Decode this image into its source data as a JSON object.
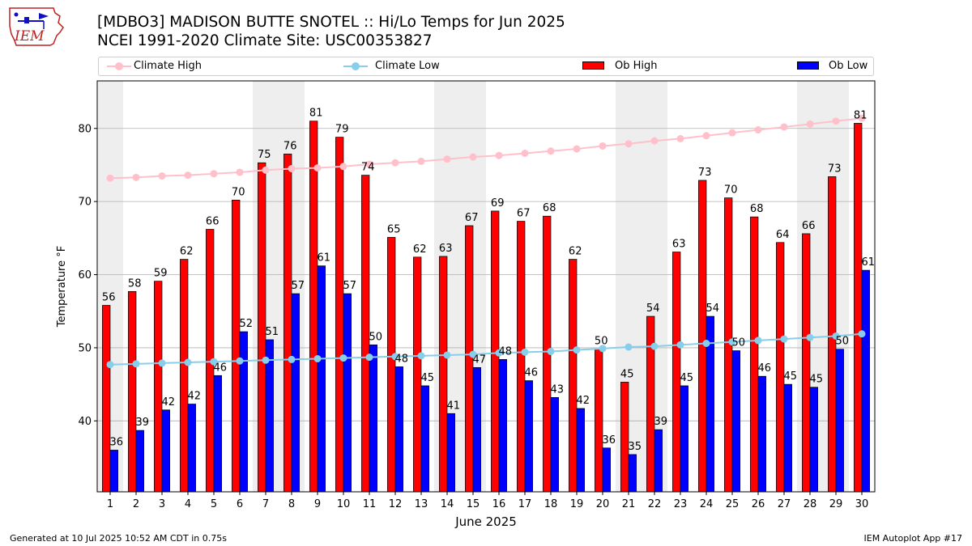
{
  "header": {
    "title": "[MDBO3] MADISON BUTTE SNOTEL :: Hi/Lo Temps for Jun 2025",
    "subtitle": "NCEI 1991-2020 Climate Site: USC00353827",
    "logo_text": "IEM"
  },
  "footer": {
    "generated": "Generated at 10 Jul 2025 10:52 AM CDT in 0.75s",
    "app": "IEM Autoplot App #17"
  },
  "legend": {
    "climate_high": "Climate High",
    "climate_low": "Climate Low",
    "ob_high": "Ob High",
    "ob_low": "Ob Low"
  },
  "colors": {
    "ob_high": "#ff0000",
    "ob_low": "#0000ff",
    "climate_high": "#ffc0cb",
    "climate_low": "#87ceeb",
    "weekend_band": "#eeeeee",
    "grid": "#b0b0b0"
  },
  "chart_data": {
    "type": "bar",
    "xlabel": "June 2025",
    "ylabel": "Temperature °F",
    "ylim": [
      30.3,
      86.5
    ],
    "yticks": [
      40,
      50,
      60,
      70,
      80
    ],
    "grid": "horizontal",
    "legend_position": "top",
    "categories": [
      1,
      2,
      3,
      4,
      5,
      6,
      7,
      8,
      9,
      10,
      11,
      12,
      13,
      14,
      15,
      16,
      17,
      18,
      19,
      20,
      21,
      22,
      23,
      24,
      25,
      26,
      27,
      28,
      29,
      30
    ],
    "shaded_days": [
      1,
      7,
      8,
      14,
      15,
      21,
      22,
      28,
      29
    ],
    "series": [
      {
        "name": "Ob High",
        "kind": "bar",
        "values": [
          56,
          58,
          59,
          62,
          66,
          70,
          75,
          76,
          81,
          79,
          74,
          65,
          62,
          63,
          67,
          69,
          67,
          68,
          62,
          50,
          45,
          54,
          63,
          73,
          70,
          68,
          64,
          66,
          73,
          81
        ],
        "plotted": [
          55.8,
          57.7,
          59.1,
          62.1,
          66.2,
          70.2,
          75.3,
          76.5,
          81.0,
          78.8,
          73.6,
          65.1,
          62.4,
          62.5,
          66.7,
          68.7,
          67.3,
          68.0,
          62.1,
          49.8,
          45.3,
          54.3,
          63.1,
          72.9,
          70.5,
          67.9,
          64.4,
          65.6,
          73.4,
          80.7
        ]
      },
      {
        "name": "Ob Low",
        "kind": "bar",
        "values": [
          36,
          39,
          42,
          42,
          46,
          52,
          51,
          57,
          61,
          57,
          50,
          48,
          45,
          41,
          47,
          48,
          46,
          43,
          42,
          36,
          35,
          39,
          45,
          54,
          50,
          46,
          45,
          45,
          50,
          61
        ],
        "plotted": [
          36.0,
          38.7,
          41.5,
          42.3,
          46.2,
          52.2,
          51.1,
          57.4,
          61.2,
          57.4,
          50.4,
          47.4,
          44.8,
          41.0,
          47.3,
          48.4,
          45.5,
          43.2,
          41.7,
          36.3,
          35.4,
          38.8,
          44.8,
          54.3,
          49.6,
          46.1,
          45.0,
          44.6,
          49.8,
          60.6
        ]
      },
      {
        "name": "Climate High",
        "kind": "line",
        "values": [
          73.2,
          73.3,
          73.5,
          73.6,
          73.8,
          74.0,
          74.3,
          74.5,
          74.6,
          74.8,
          75.1,
          75.3,
          75.5,
          75.8,
          76.1,
          76.3,
          76.6,
          76.9,
          77.2,
          77.6,
          77.9,
          78.3,
          78.6,
          79.0,
          79.4,
          79.8,
          80.2,
          80.6,
          81.0,
          81.4
        ]
      },
      {
        "name": "Climate Low",
        "kind": "line",
        "values": [
          47.7,
          47.8,
          47.9,
          48.0,
          48.1,
          48.2,
          48.3,
          48.4,
          48.5,
          48.6,
          48.7,
          48.8,
          48.9,
          49.0,
          49.1,
          49.3,
          49.4,
          49.5,
          49.7,
          49.9,
          50.1,
          50.2,
          50.4,
          50.6,
          50.8,
          51.0,
          51.2,
          51.4,
          51.6,
          51.9
        ]
      }
    ]
  }
}
